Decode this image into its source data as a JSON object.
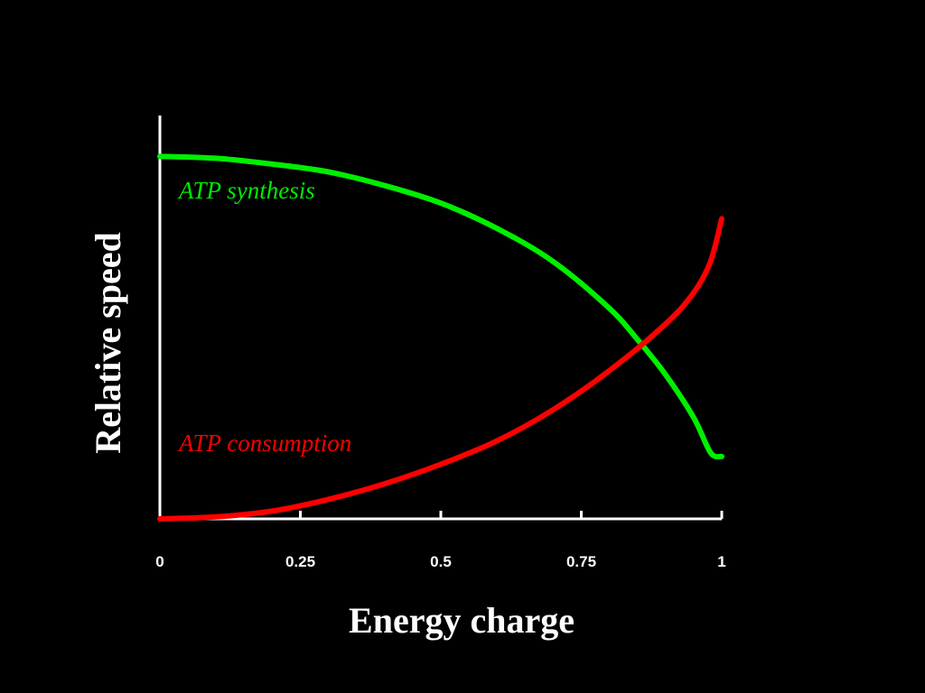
{
  "chart_data": {
    "type": "line",
    "title": "",
    "xlabel": "Energy charge",
    "ylabel": "Relative speed",
    "xlim": [
      0,
      1
    ],
    "ylim": [
      0,
      1
    ],
    "grid": false,
    "legend": "inline",
    "x_ticks": [
      "0",
      "0.25",
      "0.5",
      "0.75",
      "1"
    ],
    "series": [
      {
        "name": "ATP synthesis",
        "color": "#00ee00",
        "x": [
          0,
          0.1,
          0.2,
          0.3,
          0.4,
          0.5,
          0.6,
          0.7,
          0.8,
          0.85,
          0.9,
          0.95,
          0.98,
          1.0
        ],
        "y": [
          0.93,
          0.925,
          0.91,
          0.89,
          0.855,
          0.81,
          0.745,
          0.66,
          0.54,
          0.46,
          0.37,
          0.26,
          0.17,
          0.16
        ]
      },
      {
        "name": "ATP consumption",
        "color": "#ff0000",
        "x": [
          0,
          0.1,
          0.2,
          0.3,
          0.4,
          0.5,
          0.6,
          0.7,
          0.8,
          0.9,
          0.95,
          0.98,
          1.0
        ],
        "y": [
          0.0,
          0.005,
          0.02,
          0.05,
          0.09,
          0.14,
          0.2,
          0.28,
          0.38,
          0.5,
          0.58,
          0.66,
          0.77
        ]
      }
    ]
  }
}
